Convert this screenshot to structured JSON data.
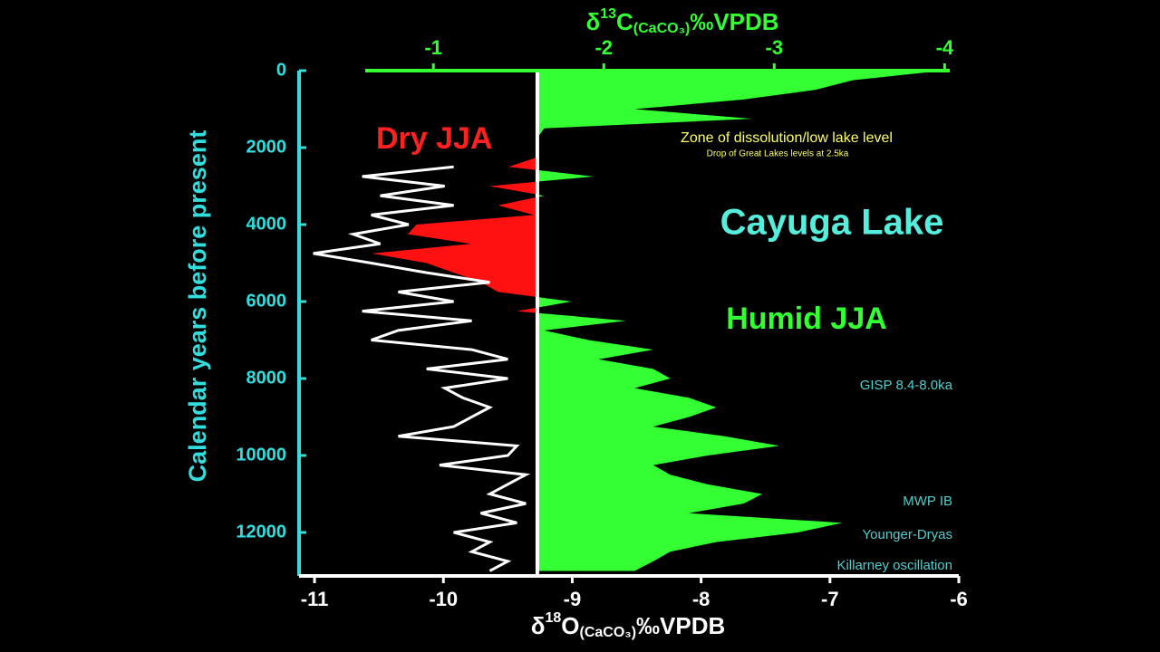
{
  "chart_data": {
    "type": "line",
    "x_label": {
      "prefix": "δ",
      "sup": "18",
      "main": "O",
      "sub": "(CaCO₃)",
      "suffix": "‰VPDB"
    },
    "x2_label": {
      "prefix": "δ",
      "sup": "13",
      "main": "C",
      "sub": "(CaCO₃)",
      "suffix": "‰VPDB"
    },
    "y_label": "Calendar years before present",
    "xlim": [
      -11.12,
      -6
    ],
    "xticks": [
      -11,
      -10,
      -9,
      -8,
      -7,
      -6
    ],
    "x2lim": [
      -0.6,
      -4.03
    ],
    "x2ticks": [
      -1,
      -2,
      -3,
      -4
    ],
    "ylim": [
      0,
      13130
    ],
    "yticks": [
      0,
      2000,
      4000,
      6000,
      8000,
      10000,
      12000
    ],
    "baseline": -1.61,
    "series": [
      {
        "name": "δ13C",
        "axis": "x2",
        "color": "#33ff33",
        "color_dry": "#ff1111",
        "y": [
          0,
          250,
          500,
          750,
          1000,
          1250,
          1500,
          1750,
          2000,
          2250,
          2500,
          2750,
          3000,
          3250,
          3500,
          3750,
          4000,
          4250,
          4500,
          4750,
          5000,
          5250,
          5500,
          5750,
          6000,
          6250,
          6500,
          6750,
          7000,
          7250,
          7500,
          7750,
          8000,
          8250,
          8500,
          8750,
          9000,
          9250,
          9500,
          9750,
          10000,
          10250,
          10500,
          10750,
          11000,
          11250,
          11500,
          11750,
          12000,
          12250,
          12500,
          12750,
          13000
        ],
        "values": [
          -3.99,
          -3.46,
          -3.24,
          -2.82,
          -2.18,
          -2.87,
          -1.65,
          -1.61,
          -1.61,
          -1.61,
          -1.44,
          -1.94,
          -1.33,
          -1.65,
          -1.38,
          -1.59,
          -0.9,
          -0.85,
          -1.22,
          -0.64,
          -0.96,
          -1.12,
          -1.28,
          -1.38,
          -1.81,
          -1.49,
          -2.13,
          -1.65,
          -1.91,
          -2.29,
          -1.97,
          -2.29,
          -2.39,
          -2.18,
          -2.5,
          -2.66,
          -2.5,
          -2.29,
          -2.71,
          -3.03,
          -2.61,
          -2.29,
          -2.39,
          -2.61,
          -2.93,
          -2.82,
          -2.5,
          -3.4,
          -3.14,
          -2.66,
          -2.39,
          -2.29,
          -2.18
        ]
      },
      {
        "name": "δ18O",
        "axis": "x",
        "color": "#ffffff",
        "y": [
          2500,
          2750,
          3000,
          3250,
          3500,
          3750,
          4000,
          4250,
          4500,
          4750,
          5000,
          5250,
          5500,
          5750,
          6000,
          6250,
          6500,
          6750,
          7000,
          7250,
          7500,
          7750,
          8000,
          8250,
          8500,
          8750,
          9000,
          9250,
          9500,
          9750,
          10000,
          10250,
          10500,
          10750,
          11000,
          11250,
          11500,
          11750,
          12000,
          12250,
          12500,
          12750,
          13000
        ],
        "values": [
          -9.92,
          -10.63,
          -9.99,
          -10.49,
          -9.92,
          -10.56,
          -10.27,
          -10.7,
          -10.49,
          -11.01,
          -10.56,
          -10.13,
          -9.64,
          -10.35,
          -9.92,
          -10.63,
          -9.78,
          -10.35,
          -10.56,
          -9.78,
          -9.5,
          -10.13,
          -9.5,
          -9.99,
          -9.85,
          -9.64,
          -9.78,
          -9.92,
          -10.35,
          -9.43,
          -9.5,
          -10.03,
          -9.36,
          -9.5,
          -9.64,
          -9.36,
          -9.71,
          -9.43,
          -9.92,
          -9.64,
          -9.78,
          -9.5,
          -9.64
        ]
      }
    ],
    "annotations": [
      {
        "text": "Dry JJA"
      },
      {
        "text": "Zone of dissolution/low lake level"
      },
      {
        "text": "Drop of Great Lakes levels at 2.5ka"
      },
      {
        "text": "Cayuga Lake"
      },
      {
        "text": "Humid JJA"
      },
      {
        "text": "GISP 8.4-8.0ka"
      },
      {
        "text": "MWP IB"
      },
      {
        "text": "Younger-Dryas"
      },
      {
        "text": "Killarney oscillation"
      }
    ]
  }
}
